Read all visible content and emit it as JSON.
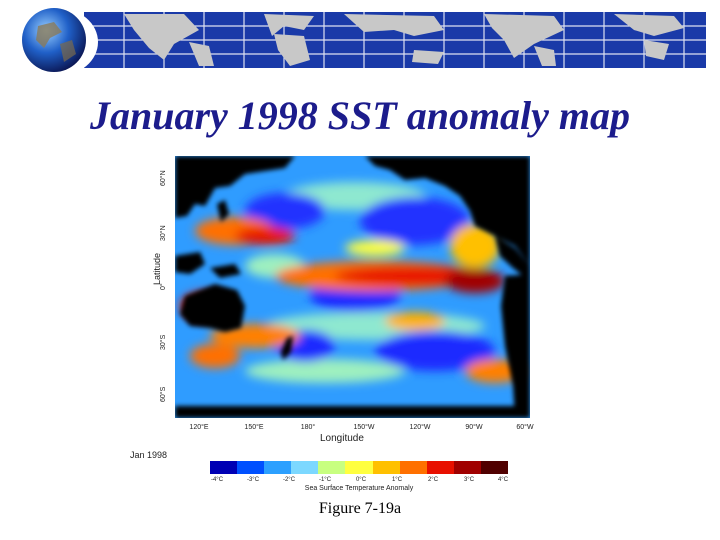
{
  "slide": {
    "title": "January 1998 SST anomaly map",
    "caption": "Figure 7-19a"
  },
  "map": {
    "latitude_ticks": [
      "60°N",
      "30°N",
      "0°",
      "30°S",
      "60°S"
    ],
    "longitude_ticks": [
      "120°E",
      "150°E",
      "180°",
      "150°W",
      "120°W",
      "90°W",
      "60°W"
    ],
    "xlabel": "Longitude",
    "ylabel": "Latitude",
    "date": "Jan 1998",
    "colorbar": {
      "title": "Sea Surface Temperature Anomaly",
      "ticks": [
        "-4°C",
        "-3°C",
        "-2°C",
        "-1°C",
        "0°C",
        "1°C",
        "2°C",
        "3°C",
        "4°C"
      ],
      "colors": [
        "#0000b4",
        "#0050ff",
        "#2ca0ff",
        "#7cd8ff",
        "#c8ff80",
        "#ffff40",
        "#ffc000",
        "#ff7000",
        "#e81000",
        "#a00000",
        "#500000"
      ]
    },
    "colors": {
      "land": "#000000",
      "ocean_base": "#2f9cff",
      "warm": "#e81800",
      "cool": "#1a2cff",
      "neutral": "#8ee8d0"
    }
  }
}
